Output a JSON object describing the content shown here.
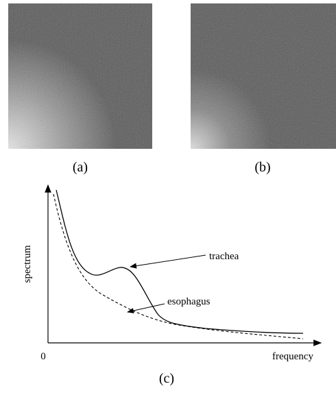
{
  "panels": [
    {
      "label": "(a)"
    },
    {
      "label": "(b)"
    }
  ],
  "plot": {
    "label": "(c)",
    "y_axis_label": "spectrum",
    "x_axis_label": "frequency",
    "origin_label": "0",
    "annotations": [
      "trachea",
      "esophagus"
    ]
  }
}
